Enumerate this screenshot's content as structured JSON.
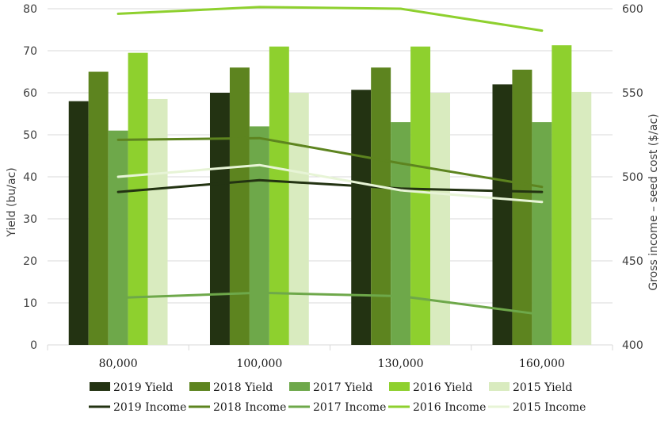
{
  "chart_data": {
    "type": "bar",
    "categories": [
      "80,000",
      "100,000",
      "130,000",
      "160,000"
    ],
    "ylabel": "Yield (bu/ac)",
    "y2label": "Gross income – seed cost ($/ac)",
    "ylim": [
      0,
      80
    ],
    "y2lim": [
      400,
      600
    ],
    "yticks": [
      "0",
      "10",
      "20",
      "30",
      "40",
      "50",
      "60",
      "70",
      "80"
    ],
    "y2ticks": [
      "400",
      "450",
      "500",
      "550",
      "600"
    ],
    "grid": true,
    "legend_position": "bottom",
    "bar_series": [
      {
        "name": "2019 Yield",
        "color": "#233312",
        "values": [
          58,
          60,
          60.7,
          62
        ]
      },
      {
        "name": "2018 Yield",
        "color": "#5d841f",
        "values": [
          65,
          66,
          66,
          65.5
        ]
      },
      {
        "name": "2017 Yield",
        "color": "#6ea84a",
        "values": [
          51,
          52,
          53,
          53
        ]
      },
      {
        "name": "2016 Yield",
        "color": "#8ed02e",
        "values": [
          69.5,
          71,
          71,
          71.3
        ]
      },
      {
        "name": "2015 Yield",
        "color": "#d9ebbf",
        "values": [
          58.5,
          60,
          60,
          60.2
        ]
      }
    ],
    "line_series": [
      {
        "name": "2019 Income",
        "color": "#233312",
        "values": [
          491,
          498,
          493,
          491
        ]
      },
      {
        "name": "2018 Income",
        "color": "#5d841f",
        "values": [
          522,
          523,
          508,
          494
        ]
      },
      {
        "name": "2017 Income",
        "color": "#6ea84a",
        "values": [
          428,
          431,
          429,
          418
        ]
      },
      {
        "name": "2016 Income",
        "color": "#8ed02e",
        "values": [
          597,
          601,
          600,
          587
        ]
      },
      {
        "name": "2015 Income",
        "color": "#e7f4d6",
        "values": [
          500,
          507,
          492,
          485
        ]
      }
    ]
  }
}
